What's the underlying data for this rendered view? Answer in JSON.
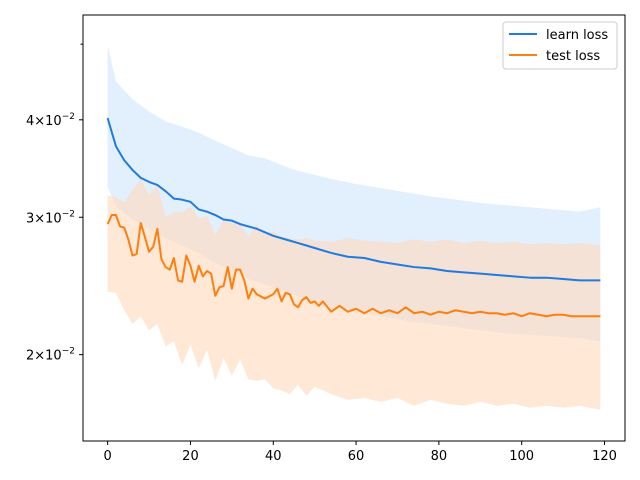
{
  "chart_data": {
    "type": "line",
    "title": "",
    "xlabel": "",
    "ylabel": "",
    "xlim": [
      -5.95,
      124.95
    ],
    "ylim": [
      0.0155,
      0.0545
    ],
    "yscale": "log",
    "grid": false,
    "legend_position": "top-right",
    "x_ticks": [
      0,
      20,
      40,
      60,
      80,
      100,
      120
    ],
    "x_tick_labels": [
      "0",
      "20",
      "40",
      "60",
      "80",
      "100",
      "120"
    ],
    "y_ticks": [
      0.02,
      0.03,
      0.04
    ],
    "y_tick_labels": [
      {
        "mantissa": "2",
        "exponent": "−2"
      },
      {
        "mantissa": "3",
        "exponent": "−2"
      },
      {
        "mantissa": "4",
        "exponent": "−2"
      }
    ],
    "y_minor_ticks": [
      0.05
    ],
    "series": [
      {
        "name": "learn loss",
        "color": "#1f7be0",
        "band_color": "#cfe5fb",
        "points": [
          [
            0,
            0.0402
          ],
          [
            2,
            0.037
          ],
          [
            4,
            0.0355
          ],
          [
            6,
            0.0345
          ],
          [
            8,
            0.0337
          ],
          [
            10,
            0.0333
          ],
          [
            12,
            0.033
          ],
          [
            14,
            0.0324
          ],
          [
            16,
            0.0317
          ],
          [
            18,
            0.0316
          ],
          [
            20,
            0.0314
          ],
          [
            22,
            0.0307
          ],
          [
            24,
            0.0305
          ],
          [
            26,
            0.0302
          ],
          [
            28,
            0.0298
          ],
          [
            30,
            0.0297
          ],
          [
            32,
            0.0294
          ],
          [
            34,
            0.0292
          ],
          [
            36,
            0.029
          ],
          [
            38,
            0.0287
          ],
          [
            40,
            0.0284
          ],
          [
            42,
            0.0282
          ],
          [
            44,
            0.028
          ],
          [
            46,
            0.0278
          ],
          [
            48,
            0.0276
          ],
          [
            50,
            0.0274
          ],
          [
            54,
            0.027
          ],
          [
            58,
            0.0267
          ],
          [
            62,
            0.0266
          ],
          [
            66,
            0.0263
          ],
          [
            70,
            0.0261
          ],
          [
            74,
            0.0259
          ],
          [
            78,
            0.0258
          ],
          [
            82,
            0.0256
          ],
          [
            86,
            0.0255
          ],
          [
            90,
            0.0254
          ],
          [
            94,
            0.0253
          ],
          [
            98,
            0.0252
          ],
          [
            102,
            0.0251
          ],
          [
            106,
            0.0251
          ],
          [
            110,
            0.025
          ],
          [
            114,
            0.0249
          ],
          [
            119,
            0.0249
          ]
        ],
        "upper": [
          [
            0,
            0.0498
          ],
          [
            2,
            0.0448
          ],
          [
            6,
            0.0425
          ],
          [
            10,
            0.041
          ],
          [
            14,
            0.0398
          ],
          [
            18,
            0.0392
          ],
          [
            22,
            0.0385
          ],
          [
            26,
            0.0376
          ],
          [
            30,
            0.0368
          ],
          [
            34,
            0.036
          ],
          [
            38,
            0.0357
          ],
          [
            42,
            0.035
          ],
          [
            46,
            0.0344
          ],
          [
            50,
            0.034
          ],
          [
            54,
            0.0336
          ],
          [
            60,
            0.0331
          ],
          [
            66,
            0.0327
          ],
          [
            72,
            0.0323
          ],
          [
            78,
            0.0319
          ],
          [
            84,
            0.0316
          ],
          [
            90,
            0.0313
          ],
          [
            96,
            0.0311
          ],
          [
            102,
            0.0309
          ],
          [
            108,
            0.0307
          ],
          [
            114,
            0.0305
          ],
          [
            119,
            0.0309
          ]
        ],
        "lower": [
          [
            0,
            0.0328
          ],
          [
            2,
            0.031
          ],
          [
            6,
            0.0298
          ],
          [
            10,
            0.029
          ],
          [
            14,
            0.0282
          ],
          [
            18,
            0.0276
          ],
          [
            22,
            0.027
          ],
          [
            26,
            0.0262
          ],
          [
            30,
            0.0256
          ],
          [
            34,
            0.025
          ],
          [
            38,
            0.0246
          ],
          [
            42,
            0.0241
          ],
          [
            46,
            0.0238
          ],
          [
            50,
            0.0234
          ],
          [
            54,
            0.0231
          ],
          [
            60,
            0.0227
          ],
          [
            66,
            0.0224
          ],
          [
            72,
            0.0221
          ],
          [
            78,
            0.0219
          ],
          [
            84,
            0.0217
          ],
          [
            90,
            0.0215
          ],
          [
            96,
            0.0213
          ],
          [
            102,
            0.0212
          ],
          [
            108,
            0.0211
          ],
          [
            114,
            0.021
          ],
          [
            119,
            0.0208
          ]
        ]
      },
      {
        "name": "test loss",
        "color": "#ff7f0e",
        "band_color": "#ffd9bb",
        "points": [
          [
            0,
            0.0294
          ],
          [
            1,
            0.0302
          ],
          [
            2,
            0.0302
          ],
          [
            3,
            0.0292
          ],
          [
            4,
            0.0291
          ],
          [
            5,
            0.0281
          ],
          [
            6,
            0.0268
          ],
          [
            7,
            0.0269
          ],
          [
            8,
            0.0295
          ],
          [
            9,
            0.0283
          ],
          [
            10,
            0.0271
          ],
          [
            11,
            0.0275
          ],
          [
            12,
            0.029
          ],
          [
            13,
            0.0265
          ],
          [
            14,
            0.0259
          ],
          [
            15,
            0.0257
          ],
          [
            16,
            0.0266
          ],
          [
            17,
            0.0249
          ],
          [
            18,
            0.0248
          ],
          [
            19,
            0.0268
          ],
          [
            20,
            0.026
          ],
          [
            21,
            0.0248
          ],
          [
            22,
            0.026
          ],
          [
            23,
            0.0252
          ],
          [
            24,
            0.0256
          ],
          [
            25,
            0.0254
          ],
          [
            26,
            0.0238
          ],
          [
            27,
            0.0244
          ],
          [
            28,
            0.0245
          ],
          [
            29,
            0.0259
          ],
          [
            30,
            0.0243
          ],
          [
            31,
            0.0257
          ],
          [
            32,
            0.0257
          ],
          [
            33,
            0.0249
          ],
          [
            34,
            0.0236
          ],
          [
            35,
            0.0243
          ],
          [
            36,
            0.0239
          ],
          [
            38,
            0.0236
          ],
          [
            40,
            0.0239
          ],
          [
            41,
            0.0243
          ],
          [
            42,
            0.0234
          ],
          [
            43,
            0.024
          ],
          [
            44,
            0.0239
          ],
          [
            45,
            0.0232
          ],
          [
            46,
            0.023
          ],
          [
            47,
            0.0235
          ],
          [
            48,
            0.0237
          ],
          [
            49,
            0.0233
          ],
          [
            50,
            0.0234
          ],
          [
            51,
            0.0231
          ],
          [
            52,
            0.0234
          ],
          [
            54,
            0.0227
          ],
          [
            56,
            0.0231
          ],
          [
            58,
            0.0227
          ],
          [
            60,
            0.0229
          ],
          [
            62,
            0.0226
          ],
          [
            64,
            0.0229
          ],
          [
            66,
            0.0226
          ],
          [
            68,
            0.0228
          ],
          [
            70,
            0.0226
          ],
          [
            72,
            0.023
          ],
          [
            74,
            0.0226
          ],
          [
            76,
            0.0227
          ],
          [
            78,
            0.0225
          ],
          [
            80,
            0.0227
          ],
          [
            82,
            0.0226
          ],
          [
            84,
            0.0228
          ],
          [
            86,
            0.0227
          ],
          [
            88,
            0.0226
          ],
          [
            90,
            0.0227
          ],
          [
            92,
            0.0226
          ],
          [
            94,
            0.0226
          ],
          [
            96,
            0.0225
          ],
          [
            98,
            0.0226
          ],
          [
            100,
            0.0224
          ],
          [
            102,
            0.0226
          ],
          [
            104,
            0.0225
          ],
          [
            106,
            0.0224
          ],
          [
            108,
            0.0225
          ],
          [
            110,
            0.0225
          ],
          [
            112,
            0.0224
          ],
          [
            114,
            0.0224
          ],
          [
            116,
            0.0224
          ],
          [
            119,
            0.0224
          ]
        ],
        "upper": [
          [
            0,
            0.032
          ],
          [
            2,
            0.0318
          ],
          [
            4,
            0.0314
          ],
          [
            6,
            0.0325
          ],
          [
            8,
            0.0336
          ],
          [
            10,
            0.032
          ],
          [
            12,
            0.033
          ],
          [
            14,
            0.03
          ],
          [
            16,
            0.0305
          ],
          [
            18,
            0.0304
          ],
          [
            20,
            0.031
          ],
          [
            22,
            0.0299
          ],
          [
            24,
            0.0301
          ],
          [
            26,
            0.0285
          ],
          [
            28,
            0.0298
          ],
          [
            30,
            0.0295
          ],
          [
            32,
            0.0294
          ],
          [
            34,
            0.0283
          ],
          [
            36,
            0.0294
          ],
          [
            38,
            0.0285
          ],
          [
            40,
            0.0288
          ],
          [
            42,
            0.0283
          ],
          [
            44,
            0.0282
          ],
          [
            46,
            0.0281
          ],
          [
            48,
            0.0282
          ],
          [
            50,
            0.028
          ],
          [
            54,
            0.0279
          ],
          [
            58,
            0.0282
          ],
          [
            62,
            0.028
          ],
          [
            66,
            0.0279
          ],
          [
            70,
            0.0278
          ],
          [
            74,
            0.0281
          ],
          [
            78,
            0.0279
          ],
          [
            82,
            0.0281
          ],
          [
            86,
            0.0278
          ],
          [
            90,
            0.028
          ],
          [
            94,
            0.0278
          ],
          [
            98,
            0.0279
          ],
          [
            102,
            0.0277
          ],
          [
            106,
            0.0278
          ],
          [
            110,
            0.0277
          ],
          [
            114,
            0.0278
          ],
          [
            119,
            0.0276
          ]
        ],
        "lower": [
          [
            0,
            0.0241
          ],
          [
            2,
            0.024
          ],
          [
            4,
            0.0228
          ],
          [
            6,
            0.0219
          ],
          [
            8,
            0.0224
          ],
          [
            10,
            0.0215
          ],
          [
            12,
            0.0219
          ],
          [
            14,
            0.0205
          ],
          [
            16,
            0.0208
          ],
          [
            18,
            0.0194
          ],
          [
            20,
            0.0206
          ],
          [
            22,
            0.0192
          ],
          [
            24,
            0.0203
          ],
          [
            26,
            0.0185
          ],
          [
            28,
            0.0198
          ],
          [
            30,
            0.0188
          ],
          [
            32,
            0.0197
          ],
          [
            34,
            0.0186
          ],
          [
            36,
            0.0185
          ],
          [
            38,
            0.0186
          ],
          [
            40,
            0.0181
          ],
          [
            42,
            0.018
          ],
          [
            44,
            0.0178
          ],
          [
            46,
            0.0183
          ],
          [
            48,
            0.0177
          ],
          [
            50,
            0.0182
          ],
          [
            54,
            0.0178
          ],
          [
            58,
            0.0175
          ],
          [
            62,
            0.0176
          ],
          [
            66,
            0.0174
          ],
          [
            70,
            0.0176
          ],
          [
            74,
            0.0172
          ],
          [
            78,
            0.0175
          ],
          [
            82,
            0.0173
          ],
          [
            86,
            0.0172
          ],
          [
            90,
            0.0174
          ],
          [
            94,
            0.0172
          ],
          [
            98,
            0.0173
          ],
          [
            102,
            0.0171
          ],
          [
            106,
            0.0172
          ],
          [
            110,
            0.0171
          ],
          [
            114,
            0.0172
          ],
          [
            119,
            0.017
          ]
        ]
      }
    ]
  }
}
